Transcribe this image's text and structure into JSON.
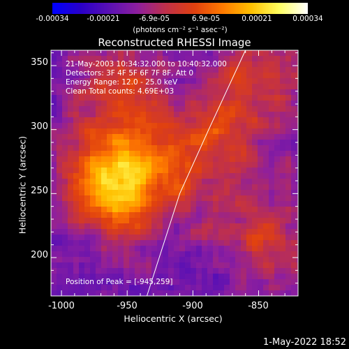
{
  "colorbar": {
    "ticks": [
      "-0.00034",
      "-0.00021",
      "-6.9e-05",
      "6.9e-05",
      "0.00021",
      "0.00034"
    ],
    "tick_values": [
      -0.00034,
      -0.00021,
      -6.9e-05,
      6.9e-05,
      0.00021,
      0.00034
    ],
    "range": [
      -0.00034,
      0.00034
    ],
    "label": "(photons cm⁻² s⁻¹ asec⁻²)",
    "colors": [
      "#0000ff",
      "#2a00c8",
      "#5a10b4",
      "#8e1f9e",
      "#c0304a",
      "#e04010",
      "#ff7a00",
      "#ffc000",
      "#ffff60",
      "#ffffff"
    ]
  },
  "chart_data": {
    "type": "heatmap",
    "title": "Reconstructed RHESSI Image",
    "xlabel": "Heliocentric X (arcsec)",
    "ylabel": "Heliocentric Y (arcsec)",
    "xlim": [
      -1008,
      -820
    ],
    "ylim": [
      170,
      362
    ],
    "xticks": [
      -1000,
      -950,
      -900,
      -850
    ],
    "yticks": [
      200,
      250,
      300,
      350
    ],
    "limb": [
      [
        -935,
        170
      ],
      [
        -910,
        250
      ],
      [
        -888,
        300
      ],
      [
        -860,
        362
      ]
    ],
    "peak": [
      -945,
      259
    ],
    "annotations": [
      "21-May-2003 10:34:32.000 to 10:40:32.000",
      "Detectors: 3F 4F 5F 6F 7F 8F, Att 0",
      "Energy Range: 12.0 - 25.0 keV",
      "Clean     Total counts: 4.69E+03"
    ],
    "peak_label": "Position of Peak = [-945,259]",
    "grid": false
  },
  "timestamp": "1-May-2022 18:52"
}
